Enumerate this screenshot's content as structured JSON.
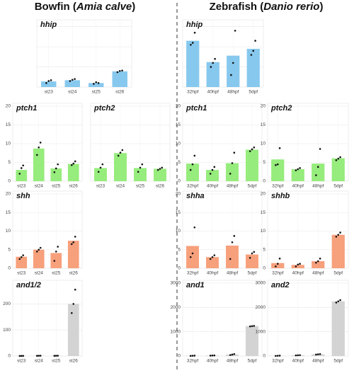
{
  "headers": [
    [
      "Bowfin (",
      "Amia calve",
      ")"
    ],
    [
      "Zebrafish (",
      "Danio rerio",
      ")"
    ]
  ],
  "chart_data": [
    {
      "type": "bar",
      "title": "hhip",
      "categories": [
        "st23",
        "st24",
        "st25",
        "st26"
      ],
      "values": [
        1.4,
        1.7,
        1.0,
        3.9
      ],
      "points": [
        [
          1.0,
          1.5,
          1.7
        ],
        [
          1.5,
          1.8,
          2.0
        ],
        [
          0.8,
          1.2,
          1.0
        ],
        [
          3.7,
          4.0,
          4.1
        ]
      ],
      "color": "#87c8ee",
      "ylim": [
        0,
        16
      ],
      "yticks": [
        0,
        5,
        10,
        15
      ],
      "tick_labels": false,
      "grid": true
    },
    {
      "type": "bar",
      "title": "hhip",
      "categories": [
        "32hpf",
        "40hpf",
        "48hpf",
        "5dpf"
      ],
      "values": [
        11.5,
        6.2,
        7.8,
        9.5
      ],
      "points": [
        [
          10.5,
          11,
          13.5
        ],
        [
          5,
          6,
          7
        ],
        [
          3,
          6,
          14
        ],
        [
          8,
          9,
          11.5
        ]
      ],
      "color": "#87c8ee",
      "ylim": [
        0,
        16
      ],
      "yticks": [
        0,
        5,
        10,
        15
      ],
      "tick_labels": false,
      "grid": true
    },
    {
      "type": "bar",
      "title": "ptch1",
      "categories": [
        "st23",
        "st24",
        "st25",
        "st26"
      ],
      "values": [
        3.0,
        8.7,
        3.4,
        4.6
      ],
      "points": [
        [
          2,
          3.5,
          4.2
        ],
        [
          7,
          9,
          10.3
        ],
        [
          2.4,
          3.4,
          4.5
        ],
        [
          4.3,
          4.7,
          5.3
        ]
      ],
      "color": "#96ec7c",
      "ylim": [
        0,
        20
      ],
      "yticks": [
        0,
        5,
        10,
        15,
        20
      ],
      "tick_labels": true,
      "grid": true
    },
    {
      "type": "bar",
      "title": "ptch2",
      "categories": [
        "st23",
        "st24",
        "st25",
        "st26"
      ],
      "values": [
        3.5,
        7.5,
        3.5,
        3.3
      ],
      "points": [
        [
          2.5,
          3.6,
          4.5
        ],
        [
          6.8,
          7.6,
          8.3
        ],
        [
          2.5,
          3.6,
          4.5
        ],
        [
          3,
          3.3,
          3.6
        ]
      ],
      "color": "#96ec7c",
      "ylim": [
        0,
        20
      ],
      "yticks": [
        0,
        5,
        10,
        15,
        20
      ],
      "tick_labels": false,
      "grid": true
    },
    {
      "type": "bar",
      "title": "ptch1",
      "categories": [
        "32hpf",
        "40hpf",
        "48hpf",
        "5dpf"
      ],
      "values": [
        4.7,
        3.0,
        4.8,
        8.4
      ],
      "points": [
        [
          3,
          4.5,
          6.8
        ],
        [
          2,
          3,
          3.8
        ],
        [
          2,
          4.8,
          7.6
        ],
        [
          8,
          8.5,
          9
        ]
      ],
      "color": "#96ec7c",
      "ylim": [
        0,
        20
      ],
      "yticks": [
        0,
        5,
        10,
        15,
        20
      ],
      "tick_labels": true,
      "grid": true
    },
    {
      "type": "bar",
      "title": "ptch2",
      "categories": [
        "32hpf",
        "40hpf",
        "48hpf",
        "5dpf"
      ],
      "values": [
        5.8,
        3.2,
        4.7,
        6.1
      ],
      "points": [
        [
          4.3,
          4.5,
          8.8
        ],
        [
          2.9,
          3.2,
          3.5
        ],
        [
          1.6,
          3.8,
          8.6
        ],
        [
          5.6,
          6,
          6.4
        ]
      ],
      "color": "#96ec7c",
      "ylim": [
        0,
        20
      ],
      "yticks": [
        0,
        5,
        10,
        15,
        20
      ],
      "tick_labels": true,
      "grid": true
    },
    {
      "type": "bar",
      "title": "shh",
      "categories": [
        "st23",
        "st24",
        "st25",
        "st26"
      ],
      "values": [
        3.1,
        5.0,
        4.1,
        7.4
      ],
      "points": [
        [
          2.5,
          3,
          3.5
        ],
        [
          4.5,
          5,
          5.5
        ],
        [
          2,
          4.5,
          5.8
        ],
        [
          6.5,
          7,
          8.5
        ]
      ],
      "color": "#f7a07c",
      "ylim": [
        0,
        20
      ],
      "yticks": [
        0,
        5,
        10,
        15,
        20
      ],
      "tick_labels": true,
      "grid": true
    },
    {
      "type": "bar",
      "title": "shha",
      "categories": [
        "32hpf",
        "40hpf",
        "48hpf",
        "5dpf"
      ],
      "values": [
        6.0,
        3.0,
        6.1,
        3.7
      ],
      "points": [
        [
          3,
          4,
          11
        ],
        [
          2.5,
          3,
          3.5
        ],
        [
          2.5,
          7,
          8.7
        ],
        [
          2.8,
          4,
          4.4
        ]
      ],
      "color": "#f7a07c",
      "ylim": [
        0,
        20
      ],
      "yticks": [
        0,
        5,
        10,
        15,
        20
      ],
      "tick_labels": true,
      "grid": true
    },
    {
      "type": "bar",
      "title": "shhb",
      "categories": [
        "32hpf",
        "40hpf",
        "48hpf",
        "5dpf"
      ],
      "values": [
        1.4,
        0.9,
        1.9,
        9.0
      ],
      "points": [
        [
          0.5,
          1.2,
          2.6
        ],
        [
          0.5,
          1,
          1.2
        ],
        [
          1.5,
          1.9,
          2.6
        ],
        [
          8.5,
          9,
          9.6
        ]
      ],
      "color": "#f7a07c",
      "ylim": [
        0,
        20
      ],
      "yticks": [
        0,
        5,
        10,
        15,
        20
      ],
      "tick_labels": true,
      "grid": true
    },
    {
      "type": "bar",
      "title": "and1/2",
      "categories": [
        "st23",
        "st24",
        "st25",
        "st26"
      ],
      "values": [
        0.5,
        1,
        1,
        200
      ],
      "points": [
        [
          0.3,
          0.5,
          0.7
        ],
        [
          0.8,
          1,
          1.2
        ],
        [
          0.8,
          1,
          1.2
        ],
        [
          165,
          200,
          255
        ]
      ],
      "color": "#d3d3d3",
      "ylim": [
        0,
        280
      ],
      "yticks": [
        0,
        100,
        200
      ],
      "tick_labels": true,
      "grid": true
    },
    {
      "type": "bar",
      "title": "and1",
      "categories": [
        "32hpf",
        "40hpf",
        "48hpf",
        "5dpf"
      ],
      "values": [
        10,
        20,
        60,
        1230
      ],
      "points": [
        [
          5,
          10,
          15
        ],
        [
          15,
          20,
          25
        ],
        [
          40,
          60,
          80
        ],
        [
          1220,
          1230,
          1240
        ]
      ],
      "color": "#d3d3d3",
      "ylim": [
        0,
        3000
      ],
      "yticks": [
        0,
        1000,
        2000,
        3000
      ],
      "tick_labels": true,
      "grid": true
    },
    {
      "type": "bar",
      "title": "and2",
      "categories": [
        "32hpf",
        "40hpf",
        "48hpf",
        "5dpf"
      ],
      "values": [
        10,
        30,
        70,
        2250
      ],
      "points": [
        [
          5,
          10,
          15
        ],
        [
          25,
          30,
          35
        ],
        [
          60,
          70,
          80
        ],
        [
          2200,
          2250,
          2300
        ]
      ],
      "color": "#d3d3d3",
      "ylim": [
        0,
        3000
      ],
      "yticks": [
        0,
        1000,
        2000,
        3000
      ],
      "tick_labels": true,
      "grid": true
    }
  ]
}
